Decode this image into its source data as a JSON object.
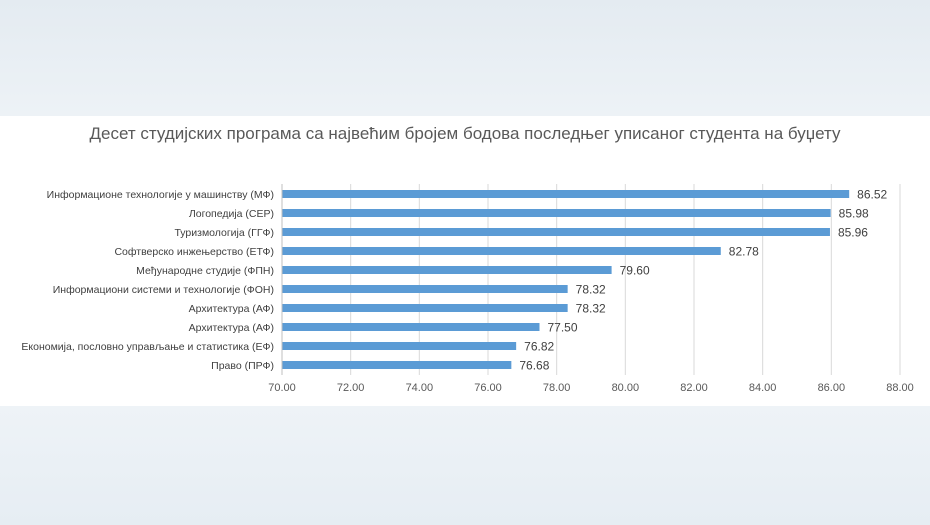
{
  "chart_data": {
    "type": "bar",
    "orientation": "horizontal",
    "title": "Десет студијских програма са највећим бројем бодова последњег уписаног студента на буџету",
    "xlabel": "",
    "ylabel": "",
    "xlim": [
      70,
      88
    ],
    "x_ticks": [
      "70.00",
      "72.00",
      "74.00",
      "76.00",
      "78.00",
      "80.00",
      "82.00",
      "84.00",
      "86.00",
      "88.00"
    ],
    "grid": true,
    "bar_color": "#5b9bd5",
    "categories": [
      "Информационе технологије у машинству (МФ)",
      "Логопедија (СЕР)",
      "Туризмологија (ГГФ)",
      "Софтверско инжењерство (ЕТФ)",
      "Међународне студије (ФПН)",
      "Информациони системи и технологије (ФОН)",
      "Архитектура (АФ)",
      "Архитектура (АФ)",
      "Економија, пословно управљање и статистика (ЕФ)",
      "Право (ПРФ)"
    ],
    "values": [
      86.52,
      85.98,
      85.96,
      82.78,
      79.6,
      78.32,
      78.32,
      77.5,
      76.82,
      76.68
    ],
    "value_labels": [
      "86.52",
      "85.98",
      "85.96",
      "82.78",
      "79.60",
      "78.32",
      "78.32",
      "77.50",
      "76.82",
      "76.68"
    ]
  }
}
